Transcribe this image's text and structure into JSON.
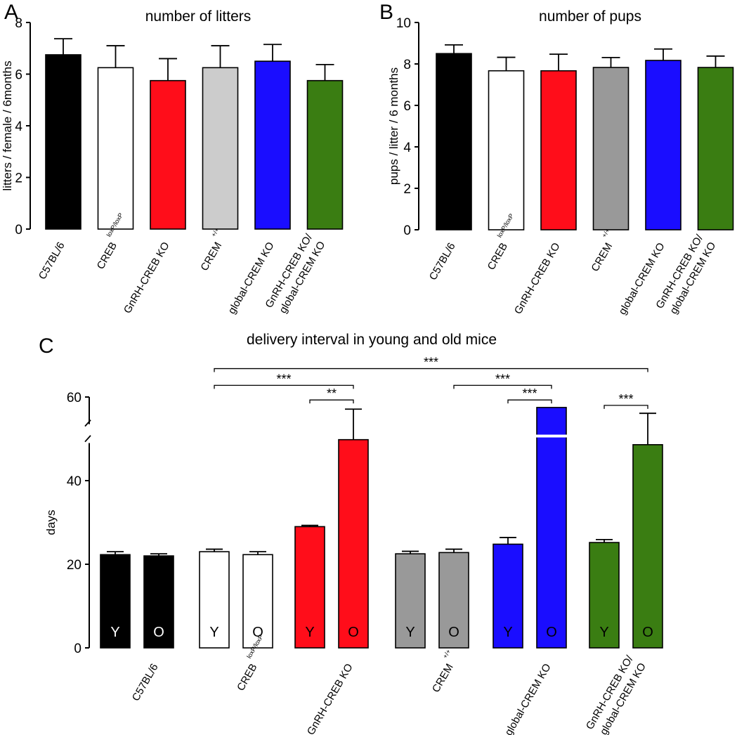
{
  "panels": [
    {
      "label": "A",
      "chart_data": {
        "type": "bar",
        "title": "number of litters",
        "xlabel": "",
        "ylabel": "litters / female / 6months",
        "ylim": [
          0,
          8
        ],
        "yticks": [
          0,
          2,
          4,
          6,
          8
        ],
        "categories": [
          {
            "lines": [
              "C57BL/6"
            ],
            "sup": ""
          },
          {
            "lines": [
              "CREB"
            ],
            "sup": "loxP/loxP"
          },
          {
            "lines": [
              "GnRH-CREB KO"
            ],
            "sup": ""
          },
          {
            "lines": [
              "CREM"
            ],
            "sup": "+/+"
          },
          {
            "lines": [
              "global-CREM KO"
            ],
            "sup": ""
          },
          {
            "lines": [
              "GnRH-CREB KO/",
              "global-CREM KO"
            ],
            "sup": ""
          }
        ],
        "values": [
          6.75,
          6.25,
          5.75,
          6.25,
          6.5,
          5.75
        ],
        "errors": [
          0.62,
          0.85,
          0.85,
          0.85,
          0.65,
          0.62
        ],
        "colors": [
          "#000000",
          "#ffffff",
          "#ff0d1a",
          "#cccccc",
          "#1a0dff",
          "#3a7d12"
        ]
      }
    },
    {
      "label": "B",
      "chart_data": {
        "type": "bar",
        "title": "number of pups",
        "xlabel": "",
        "ylabel": "pups / litter / 6 months",
        "ylim": [
          0,
          10
        ],
        "yticks": [
          0,
          2,
          4,
          6,
          8,
          10
        ],
        "categories": [
          {
            "lines": [
              "C57BL/6"
            ],
            "sup": ""
          },
          {
            "lines": [
              "CREB"
            ],
            "sup": "loxP/loxP"
          },
          {
            "lines": [
              "GnRH-CREB KO"
            ],
            "sup": ""
          },
          {
            "lines": [
              "CREM"
            ],
            "sup": "+/+"
          },
          {
            "lines": [
              "global-CREM KO"
            ],
            "sup": ""
          },
          {
            "lines": [
              "GnRH-CREB KO/",
              "global-CREM KO"
            ],
            "sup": ""
          }
        ],
        "values": [
          8.5,
          7.67,
          7.67,
          7.83,
          8.17,
          7.83
        ],
        "errors": [
          0.42,
          0.65,
          0.8,
          0.48,
          0.55,
          0.55
        ],
        "colors": [
          "#000000",
          "#ffffff",
          "#ff0d1a",
          "#999999",
          "#1a0dff",
          "#3a7d12"
        ]
      }
    },
    {
      "label": "C",
      "chart_data": {
        "type": "bar",
        "title": "delivery interval in young and old mice",
        "xlabel": "",
        "ylabel": "days",
        "ylim": [
          0,
          60
        ],
        "yticks": [
          0,
          20,
          40,
          60
        ],
        "axis_break_at": 50,
        "categories": [
          {
            "lines": [
              "C57BL/6"
            ],
            "sup": ""
          },
          {
            "lines": [
              "CREB"
            ],
            "sup": "loxP/loxP"
          },
          {
            "lines": [
              "GnRH-CREB KO"
            ],
            "sup": ""
          },
          {
            "lines": [
              "CREM"
            ],
            "sup": "+/+"
          },
          {
            "lines": [
              "global-CREM KO"
            ],
            "sup": ""
          },
          {
            "lines": [
              "GnRH-CREB KO/",
              "global-CREM KO"
            ],
            "sup": ""
          }
        ],
        "series": [
          {
            "name": "Y",
            "values": [
              22.3,
              23.0,
              29.0,
              22.5,
              24.8,
              25.2
            ],
            "errors": [
              0.7,
              0.6,
              0.3,
              0.6,
              1.6,
              0.7
            ]
          },
          {
            "name": "O",
            "values": [
              22.0,
              22.3,
              49.8,
              22.8,
              57.5,
              48.6
            ],
            "errors": [
              0.5,
              0.7,
              7.3,
              0.8,
              0.0,
              7.5
            ]
          }
        ],
        "broken_bars": [
          {
            "category": 4,
            "series": 1
          }
        ],
        "colors": [
          "#000000",
          "#ffffff",
          "#ff0d1a",
          "#999999",
          "#1a0dff",
          "#3a7d12"
        ],
        "inner_label_colors": [
          "#ffffff",
          "#000000",
          "#000000",
          "#000000",
          "#000000",
          "#000000"
        ],
        "significance": [
          {
            "from": [
              2,
              0
            ],
            "to": [
              2,
              1
            ],
            "label": "**",
            "at": 59.3
          },
          {
            "from": [
              1,
              0
            ],
            "to": [
              2,
              1
            ],
            "label": "***",
            "at": 62.8
          },
          {
            "from": [
              4,
              0
            ],
            "to": [
              4,
              1
            ],
            "label": "***",
            "at": 59.3
          },
          {
            "from": [
              3,
              1
            ],
            "to": [
              4,
              1
            ],
            "label": "***",
            "at": 62.8
          },
          {
            "from": [
              5,
              0
            ],
            "to": [
              5,
              1
            ],
            "label": "***",
            "at": 58.0
          },
          {
            "from": [
              1,
              0
            ],
            "to": [
              5,
              1
            ],
            "label": "***",
            "at": 66.8
          }
        ]
      }
    }
  ]
}
